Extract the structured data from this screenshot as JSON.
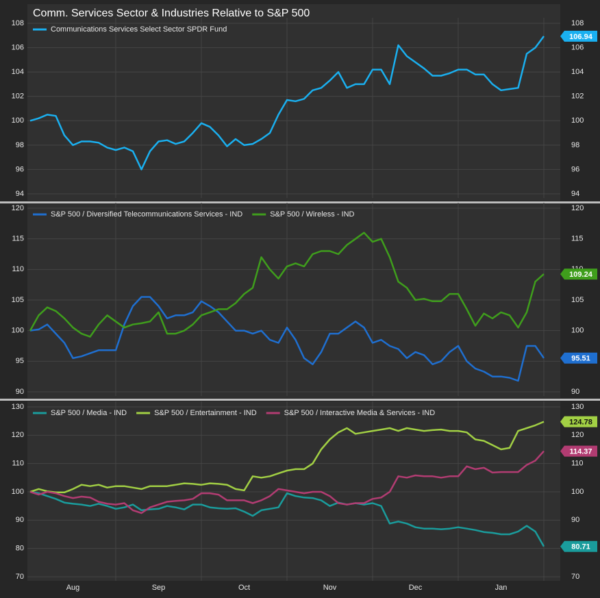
{
  "chart_data": [
    {
      "type": "line",
      "title": "Comm. Services Sector & Industries Relative to S&P 500",
      "legend": "upper left",
      "grid": true,
      "ylim": [
        94,
        108
      ],
      "yticks": [
        94,
        96,
        98,
        100,
        102,
        104,
        106,
        108
      ],
      "series": [
        {
          "name": "Communications Services Select Sector SPDR Fund",
          "color": "#1ab0f0",
          "values": [
            100.0,
            100.2,
            100.5,
            100.4,
            98.8,
            98.0,
            98.3,
            98.3,
            98.2,
            97.8,
            97.6,
            97.8,
            97.5,
            96.0,
            97.5,
            98.3,
            98.4,
            98.1,
            98.3,
            99.0,
            99.8,
            99.5,
            98.8,
            97.9,
            98.5,
            98.0,
            98.1,
            98.5,
            99.0,
            100.5,
            101.7,
            101.6,
            101.8,
            102.5,
            102.7,
            103.3,
            104.0,
            102.7,
            103.0,
            103.0,
            104.2,
            104.2,
            103.0,
            106.2,
            105.3,
            104.8,
            104.3,
            103.7,
            103.7,
            103.9,
            104.2,
            104.2,
            103.8,
            103.8,
            103.0,
            102.5,
            102.6,
            102.7,
            105.5,
            106.0,
            106.94
          ]
        }
      ]
    },
    {
      "type": "line",
      "legend": "upper left",
      "grid": true,
      "ylim": [
        90,
        120
      ],
      "yticks": [
        90,
        95,
        100,
        105,
        110,
        115,
        120
      ],
      "series": [
        {
          "name": "S&P 500 / Diversified Telecommunications Services - IND",
          "color": "#1f6fd0",
          "values": [
            100,
            100.2,
            101.0,
            99.5,
            98,
            95.5,
            95.8,
            96.3,
            96.8,
            96.8,
            96.8,
            101.0,
            104.0,
            105.5,
            105.5,
            104.0,
            102.0,
            102.5,
            102.5,
            103.0,
            104.8,
            104.0,
            103.0,
            101.5,
            100.0,
            100.0,
            99.5,
            100.0,
            98.5,
            98.0,
            100.5,
            98.5,
            95.5,
            94.5,
            96.5,
            99.5,
            99.5,
            100.5,
            101.5,
            100.5,
            98.0,
            98.5,
            97.5,
            97.0,
            95.5,
            96.5,
            96.0,
            94.5,
            95.0,
            96.5,
            97.5,
            95.0,
            93.8,
            93.3,
            92.5,
            92.5,
            92.3,
            91.8,
            97.5,
            97.5,
            95.51
          ]
        },
        {
          "name": "S&P 500 / Wireless - IND",
          "color": "#3f9e1c",
          "values": [
            100,
            102.5,
            103.8,
            103.2,
            102.0,
            100.5,
            99.5,
            99.0,
            101.0,
            102.5,
            101.5,
            100.5,
            101.0,
            101.2,
            101.5,
            103.0,
            99.5,
            99.5,
            100.0,
            101.0,
            102.5,
            103.0,
            103.5,
            103.5,
            104.5,
            106.0,
            107.0,
            112.0,
            110.0,
            108.5,
            110.5,
            111.0,
            110.5,
            112.5,
            113.0,
            113.0,
            112.5,
            114.0,
            115.0,
            116.0,
            114.5,
            115.0,
            112.0,
            108.0,
            107.0,
            105.0,
            105.2,
            104.8,
            104.8,
            106.0,
            106.0,
            103.5,
            100.8,
            102.8,
            102.0,
            103.0,
            102.5,
            100.5,
            103.0,
            108.0,
            109.24
          ]
        }
      ]
    },
    {
      "type": "line",
      "legend": "upper left",
      "grid": true,
      "ylim": [
        70,
        130
      ],
      "yticks": [
        70,
        80,
        90,
        100,
        110,
        120,
        130
      ],
      "categories": [
        null,
        null,
        null,
        null,
        null,
        "Aug",
        null,
        null,
        null,
        null,
        null,
        null,
        null,
        null,
        null,
        "Sep",
        null,
        null,
        null,
        null,
        null,
        null,
        null,
        null,
        null,
        "Oct",
        null,
        null,
        null,
        null,
        null,
        null,
        null,
        null,
        null,
        "Nov",
        null,
        null,
        null,
        null,
        null,
        null,
        null,
        null,
        null,
        "Dec",
        null,
        null,
        null,
        null,
        null,
        null,
        null,
        null,
        null,
        "Jan",
        null,
        null,
        null,
        null,
        null
      ],
      "series": [
        {
          "name": "S&P 500 / Media - IND",
          "color": "#1a9c9c",
          "values": [
            100,
            99.5,
            98.5,
            97.5,
            96.2,
            95.8,
            95.5,
            95.0,
            95.8,
            95.0,
            94.0,
            94.5,
            95.5,
            93.5,
            93.8,
            94.0,
            95.0,
            94.5,
            93.8,
            95.5,
            95.5,
            94.5,
            94.2,
            94.0,
            94.2,
            93.0,
            91.5,
            93.5,
            94.0,
            94.5,
            99.5,
            98.5,
            98.0,
            97.8,
            97.0,
            95.0,
            96.2,
            95.5,
            96.0,
            95.5,
            96.0,
            95.0,
            88.8,
            89.5,
            88.8,
            87.5,
            87.0,
            87.0,
            86.8,
            87.0,
            87.5,
            87.0,
            86.5,
            85.8,
            85.5,
            85.0,
            85.0,
            86.0,
            88.0,
            86.0,
            80.71
          ]
        },
        {
          "name": "S&P 500 / Entertainment - IND",
          "color": "#a2d044",
          "values": [
            100,
            101.0,
            100.2,
            99.8,
            99.8,
            101.0,
            102.5,
            102.0,
            102.5,
            101.5,
            102.0,
            102.0,
            101.5,
            101.0,
            102.0,
            102.0,
            102.0,
            102.5,
            103.0,
            102.8,
            102.5,
            103.0,
            102.8,
            102.5,
            101.0,
            100.5,
            105.5,
            105.0,
            105.5,
            106.5,
            107.5,
            108.0,
            108.0,
            110.0,
            115.0,
            118.5,
            121.0,
            122.5,
            120.5,
            121.0,
            121.5,
            122.0,
            122.5,
            121.5,
            122.5,
            122.0,
            121.5,
            121.8,
            122.0,
            121.5,
            121.5,
            121.0,
            118.5,
            118.0,
            116.5,
            115.0,
            115.5,
            121.5,
            122.5,
            123.5,
            124.78
          ]
        },
        {
          "name": "S&P 500 / Interactive Media & Services - IND",
          "color": "#b23c72",
          "values": [
            100,
            99.0,
            100.0,
            99.5,
            98.5,
            97.8,
            98.3,
            98.0,
            96.5,
            95.8,
            95.5,
            96.0,
            93.5,
            92.5,
            94.5,
            95.5,
            96.5,
            96.8,
            97.0,
            97.5,
            99.5,
            99.5,
            99.0,
            97.0,
            97.0,
            97.0,
            96.0,
            97.0,
            98.5,
            101.0,
            100.5,
            100.0,
            99.5,
            100.0,
            100.0,
            98.5,
            96.0,
            95.5,
            96.0,
            96.0,
            97.5,
            98.0,
            100.0,
            105.5,
            105.0,
            105.8,
            105.5,
            105.5,
            105.0,
            105.5,
            105.5,
            109.0,
            108.0,
            108.5,
            106.8,
            107.0,
            107.0,
            107.0,
            109.5,
            111.0,
            114.37
          ]
        }
      ]
    }
  ]
}
